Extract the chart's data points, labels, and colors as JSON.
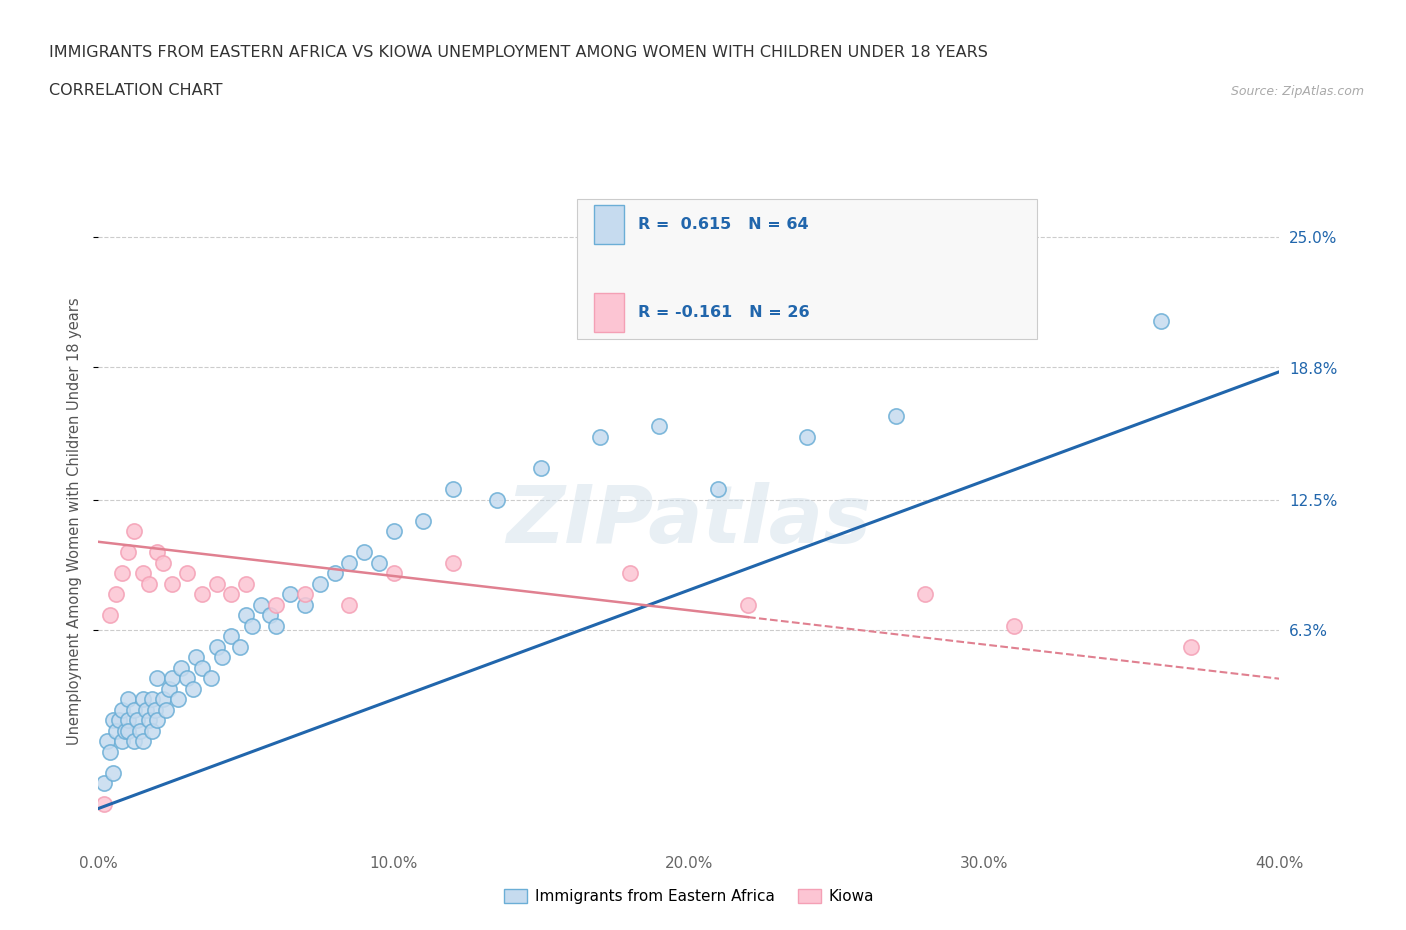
{
  "title_line1": "IMMIGRANTS FROM EASTERN AFRICA VS KIOWA UNEMPLOYMENT AMONG WOMEN WITH CHILDREN UNDER 18 YEARS",
  "title_line2": "CORRELATION CHART",
  "source_text": "Source: ZipAtlas.com",
  "watermark": "ZIPatlas",
  "ylabel": "Unemployment Among Women with Children Under 18 years",
  "xlim": [
    0.0,
    0.4
  ],
  "ylim": [
    -0.04,
    0.27
  ],
  "yticks": [
    0.063,
    0.125,
    0.188,
    0.25
  ],
  "ytick_labels": [
    "6.3%",
    "12.5%",
    "18.8%",
    "25.0%"
  ],
  "xticks": [
    0.0,
    0.1,
    0.2,
    0.3,
    0.4
  ],
  "xtick_labels": [
    "0.0%",
    "10.0%",
    "20.0%",
    "30.0%",
    "40.0%"
  ],
  "series1_edgecolor": "#6baed6",
  "series1_facecolor": "#c6dbef",
  "series2_edgecolor": "#f4a0b5",
  "series2_facecolor": "#fcc5d3",
  "trend1_color": "#2166ac",
  "trend2_color": "#e08090",
  "trend2_solid_end": 0.22,
  "R1": 0.615,
  "N1": 64,
  "R2": -0.161,
  "N2": 26,
  "legend_label1": "Immigrants from Eastern Africa",
  "legend_label2": "Kiowa",
  "blue_scatter_x": [
    0.002,
    0.003,
    0.004,
    0.005,
    0.005,
    0.006,
    0.007,
    0.008,
    0.008,
    0.009,
    0.01,
    0.01,
    0.01,
    0.012,
    0.012,
    0.013,
    0.014,
    0.015,
    0.015,
    0.016,
    0.017,
    0.018,
    0.018,
    0.019,
    0.02,
    0.02,
    0.022,
    0.023,
    0.024,
    0.025,
    0.027,
    0.028,
    0.03,
    0.032,
    0.033,
    0.035,
    0.038,
    0.04,
    0.042,
    0.045,
    0.048,
    0.05,
    0.052,
    0.055,
    0.058,
    0.06,
    0.065,
    0.07,
    0.075,
    0.08,
    0.085,
    0.09,
    0.095,
    0.1,
    0.11,
    0.12,
    0.135,
    0.15,
    0.17,
    0.19,
    0.21,
    0.24,
    0.27,
    0.36
  ],
  "blue_scatter_y": [
    -0.01,
    0.01,
    0.005,
    0.02,
    -0.005,
    0.015,
    0.02,
    0.01,
    0.025,
    0.015,
    0.02,
    0.015,
    0.03,
    0.01,
    0.025,
    0.02,
    0.015,
    0.03,
    0.01,
    0.025,
    0.02,
    0.015,
    0.03,
    0.025,
    0.02,
    0.04,
    0.03,
    0.025,
    0.035,
    0.04,
    0.03,
    0.045,
    0.04,
    0.035,
    0.05,
    0.045,
    0.04,
    0.055,
    0.05,
    0.06,
    0.055,
    0.07,
    0.065,
    0.075,
    0.07,
    0.065,
    0.08,
    0.075,
    0.085,
    0.09,
    0.095,
    0.1,
    0.095,
    0.11,
    0.115,
    0.13,
    0.125,
    0.14,
    0.155,
    0.16,
    0.13,
    0.155,
    0.165,
    0.21
  ],
  "pink_scatter_x": [
    0.002,
    0.004,
    0.006,
    0.008,
    0.01,
    0.012,
    0.015,
    0.017,
    0.02,
    0.022,
    0.025,
    0.03,
    0.035,
    0.04,
    0.045,
    0.05,
    0.06,
    0.07,
    0.085,
    0.1,
    0.12,
    0.18,
    0.22,
    0.28,
    0.31,
    0.37
  ],
  "pink_scatter_y": [
    -0.02,
    0.07,
    0.08,
    0.09,
    0.1,
    0.11,
    0.09,
    0.085,
    0.1,
    0.095,
    0.085,
    0.09,
    0.08,
    0.085,
    0.08,
    0.085,
    0.075,
    0.08,
    0.075,
    0.09,
    0.095,
    0.09,
    0.075,
    0.08,
    0.065,
    0.055
  ]
}
